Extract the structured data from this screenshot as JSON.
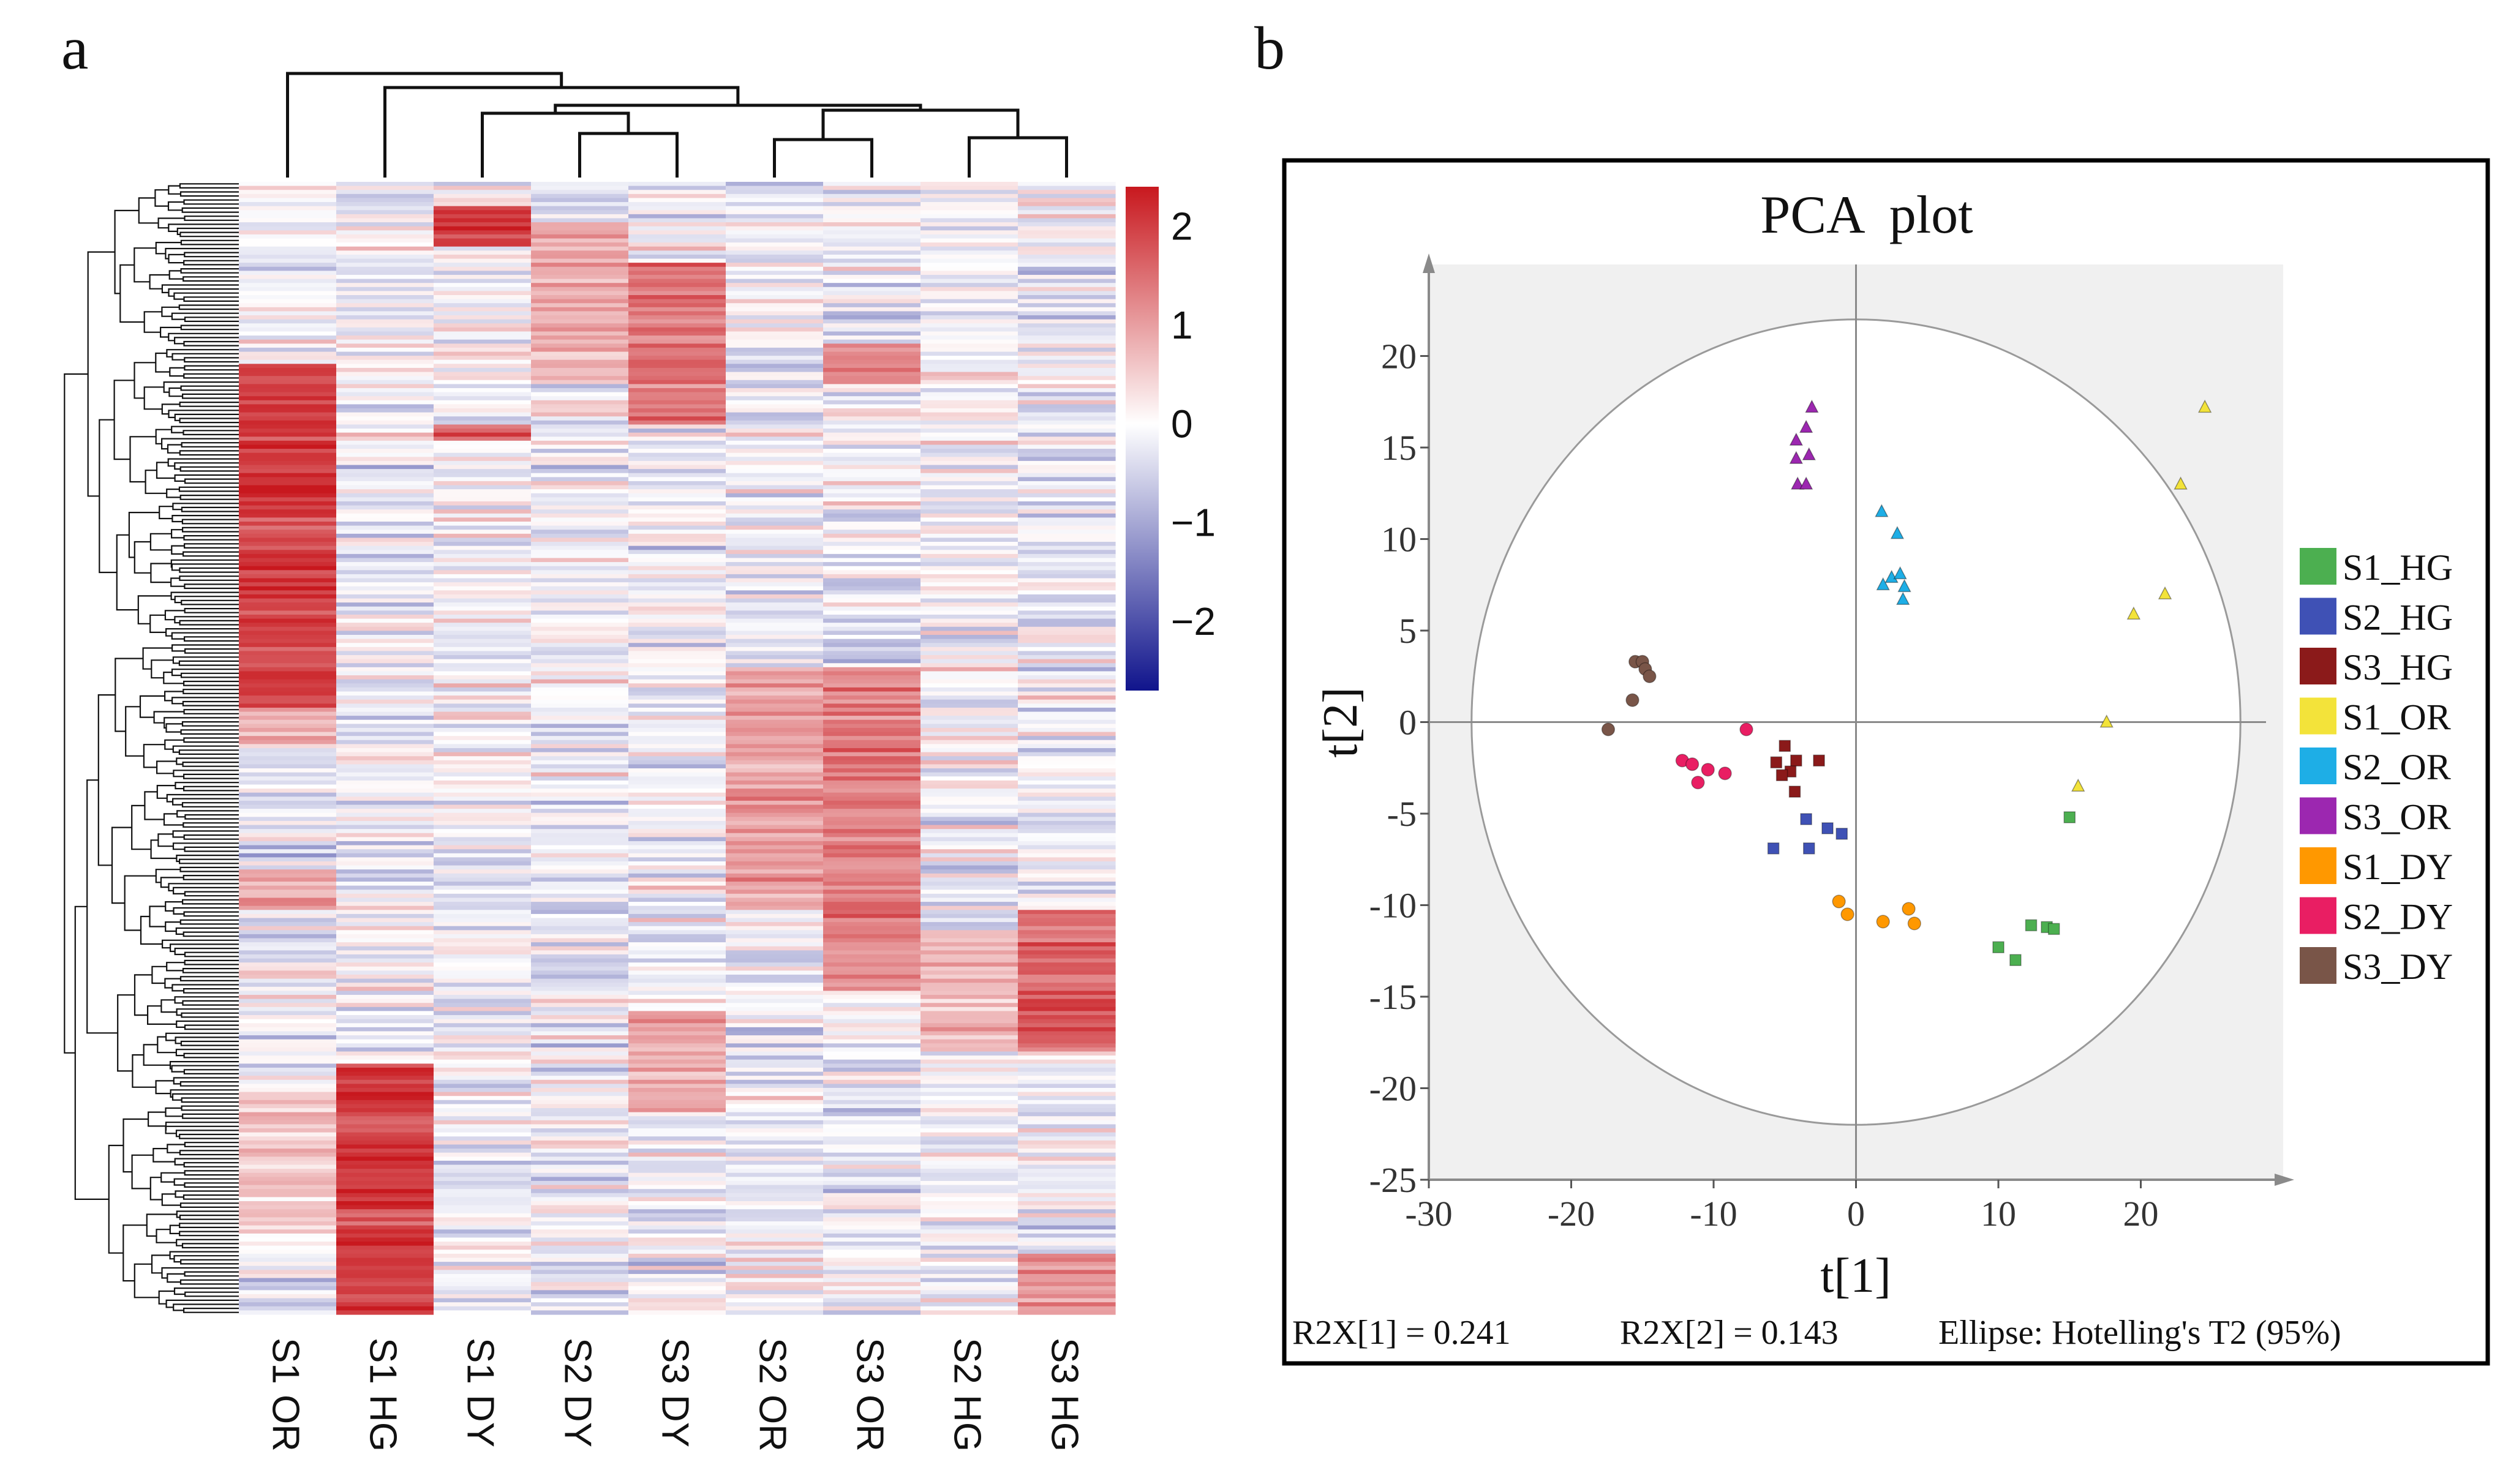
{
  "panels": {
    "a_label": "a",
    "b_label": "b"
  },
  "chart_data": [
    {
      "type": "heatmap",
      "panel": "a",
      "columns": [
        "S1 OR",
        "S1 HG",
        "S1 DY",
        "S2 DY",
        "S3 DY",
        "S2 OR",
        "S3 OR",
        "S2 HG",
        "S3 HG"
      ],
      "row_count": 280,
      "color_scale": {
        "min": -2.7,
        "max": 2.4,
        "low_color": "#10148c",
        "mid_color": "#ffffff",
        "high_color": "#c8181e"
      },
      "colorbar_ticks": [
        {
          "value": 2,
          "label": "2"
        },
        {
          "value": 1,
          "label": "1"
        },
        {
          "value": 0,
          "label": "0"
        },
        {
          "value": -1,
          "label": "−1"
        },
        {
          "value": -2,
          "label": "−2"
        }
      ],
      "column_dendrogram": "((S1 OR,(S1 HG,((S1 DY,(S2 DY,S3 DY)),((S2 OR,S3 OR),(S2 HG,S3 HG))))))",
      "blocks": [
        {
          "column": "S1 OR",
          "row_range": [
            45,
            130
          ],
          "value": 2.0
        },
        {
          "column": "S1 OR",
          "row_range": [
            130,
            140
          ],
          "value": 0.6
        },
        {
          "column": "S1 OR",
          "row_range": [
            170,
            180
          ],
          "value": 0.8
        },
        {
          "column": "S1 OR",
          "row_range": [
            225,
            260
          ],
          "value": 0.6
        },
        {
          "column": "S1 HG",
          "row_range": [
            218,
            280
          ],
          "value": 2.0
        },
        {
          "column": "S1 DY",
          "row_range": [
            6,
            16
          ],
          "value": 2.1
        },
        {
          "column": "S1 DY",
          "row_range": [
            60,
            64
          ],
          "value": 1.6
        },
        {
          "column": "S3 DY",
          "row_range": [
            20,
            60
          ],
          "value": 1.5
        },
        {
          "column": "S3 DY",
          "row_range": [
            205,
            230
          ],
          "value": 0.9
        },
        {
          "column": "S2 DY",
          "row_range": [
            10,
            50
          ],
          "value": 0.8
        },
        {
          "column": "S2 OR",
          "row_range": [
            120,
            180
          ],
          "value": 1.0
        },
        {
          "column": "S3 OR",
          "row_range": [
            120,
            200
          ],
          "value": 1.3
        },
        {
          "column": "S3 OR",
          "row_range": [
            40,
            50
          ],
          "value": 1.2
        },
        {
          "column": "S3 HG",
          "row_range": [
            180,
            215
          ],
          "value": 1.7
        },
        {
          "column": "S3 HG",
          "row_range": [
            265,
            280
          ],
          "value": 1.2
        },
        {
          "column": "S2 HG",
          "row_range": [
            185,
            215
          ],
          "value": 0.7
        }
      ]
    },
    {
      "type": "scatter",
      "panel": "b",
      "title": "PCA  plot",
      "xlabel": "t[1]",
      "ylabel": "t[2]",
      "xlim": [
        -30,
        30
      ],
      "ylim": [
        -25,
        25
      ],
      "xticks": [
        -30,
        -20,
        -10,
        0,
        10,
        20
      ],
      "yticks": [
        -25,
        -20,
        -15,
        -10,
        -5,
        0,
        5,
        10,
        15,
        20
      ],
      "ellipse": {
        "rx": 27,
        "ry": 22,
        "label": "Hotelling's T2 (95%)"
      },
      "series": [
        {
          "name": "S1_HG",
          "color": "#4caf50",
          "marker": "square",
          "points": [
            [
              15,
              -5.2
            ],
            [
              10,
              -12.3
            ],
            [
              11.2,
              -13
            ],
            [
              12.3,
              -11.1
            ],
            [
              13.4,
              -11.2
            ],
            [
              13.9,
              -11.3
            ]
          ]
        },
        {
          "name": "S2_HG",
          "color": "#3f51b5",
          "marker": "square",
          "points": [
            [
              -3.5,
              -5.3
            ],
            [
              -2,
              -5.8
            ],
            [
              -1,
              -6.1
            ],
            [
              -3.3,
              -6.9
            ],
            [
              -5.8,
              -6.9
            ]
          ]
        },
        {
          "name": "S3_HG",
          "color": "#8b1a1a",
          "marker": "square",
          "points": [
            [
              -5,
              -1.3
            ],
            [
              -2.6,
              -2.1
            ],
            [
              -4.2,
              -2.1
            ],
            [
              -5.6,
              -2.2
            ],
            [
              -4.6,
              -2.7
            ],
            [
              -5.2,
              -2.9
            ],
            [
              -4.3,
              -3.8
            ]
          ]
        },
        {
          "name": "S1_OR",
          "color": "#f3e33a",
          "marker": "triangle",
          "points": [
            [
              24.5,
              17.2
            ],
            [
              22.8,
              13
            ],
            [
              21.7,
              7
            ],
            [
              19.5,
              5.9
            ],
            [
              17.6,
              0
            ],
            [
              15.6,
              -3.5
            ]
          ]
        },
        {
          "name": "S2_OR",
          "color": "#1eaee6",
          "marker": "triangle",
          "points": [
            [
              1.8,
              11.5
            ],
            [
              2.9,
              10.3
            ],
            [
              2.5,
              7.9
            ],
            [
              3.1,
              8.1
            ],
            [
              3.4,
              7.4
            ],
            [
              1.9,
              7.5
            ],
            [
              3.3,
              6.7
            ]
          ]
        },
        {
          "name": "S3_OR",
          "color": "#9c27b0",
          "marker": "triangle",
          "points": [
            [
              -3.1,
              17.2
            ],
            [
              -3.5,
              16.1
            ],
            [
              -4.2,
              15.4
            ],
            [
              -3.3,
              14.6
            ],
            [
              -4.2,
              14.4
            ],
            [
              -4.1,
              13
            ],
            [
              -3.5,
              13
            ]
          ]
        },
        {
          "name": "S1_DY",
          "color": "#ff9800",
          "marker": "circle",
          "points": [
            [
              -1.2,
              -9.8
            ],
            [
              -0.6,
              -10.5
            ],
            [
              1.9,
              -10.9
            ],
            [
              3.7,
              -10.2
            ],
            [
              4.1,
              -11
            ]
          ]
        },
        {
          "name": "S2_DY",
          "color": "#e91e63",
          "marker": "circle",
          "points": [
            [
              -7.7,
              -0.4
            ],
            [
              -12.2,
              -2.1
            ],
            [
              -11.5,
              -2.3
            ],
            [
              -10.4,
              -2.6
            ],
            [
              -9.2,
              -2.8
            ],
            [
              -11.1,
              -3.3
            ]
          ]
        },
        {
          "name": "S3_DY",
          "color": "#795548",
          "marker": "circle",
          "points": [
            [
              -15.5,
              3.3
            ],
            [
              -15,
              3.3
            ],
            [
              -14.8,
              2.9
            ],
            [
              -14.5,
              2.5
            ],
            [
              -15.7,
              1.2
            ],
            [
              -17.4,
              -0.4
            ]
          ]
        }
      ],
      "footer": {
        "r2x1": "R2X[1] = 0.241",
        "r2x2": "R2X[2] = 0.143",
        "ellipse_note": "Ellipse: Hotelling's T2 (95%)"
      }
    }
  ]
}
